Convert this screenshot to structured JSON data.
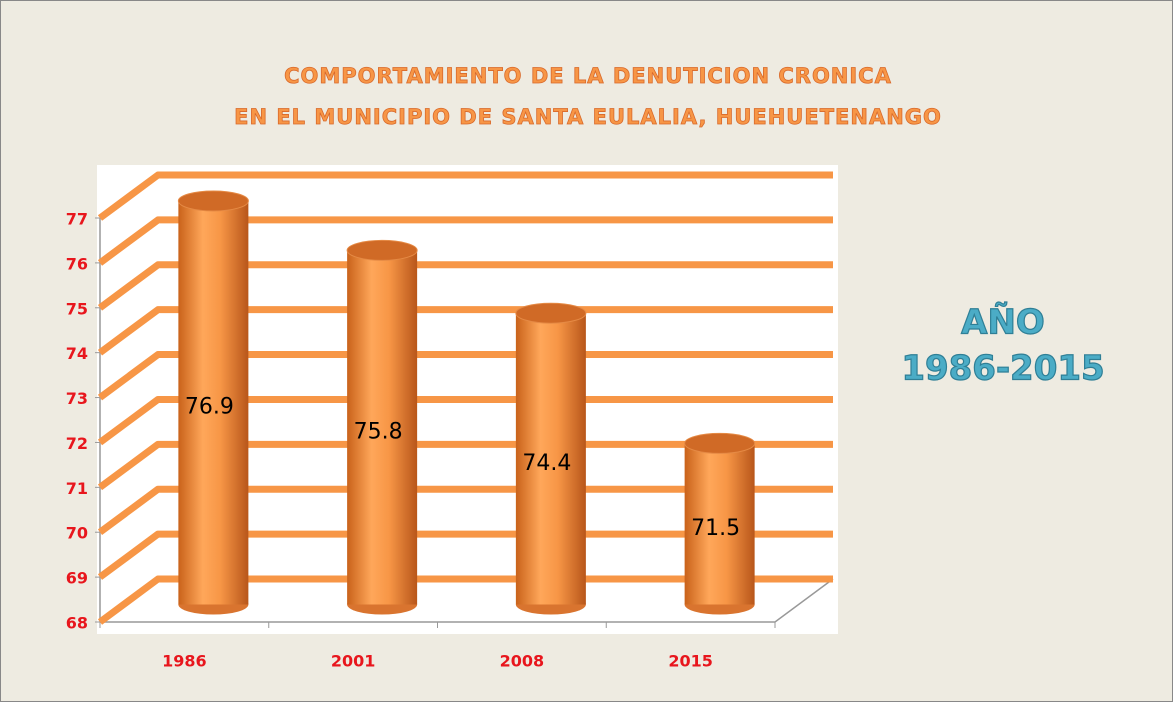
{
  "chart_data": {
    "type": "bar",
    "title": [
      "COMPORTAMIENTO DE LA DENUTICION CRONICA",
      "EN EL MUNICIPIO DE SANTA EULALIA, HUEHUETENANGO"
    ],
    "annotations": [
      "AÑO",
      "1986-2015"
    ],
    "categories": [
      "1986",
      "2001",
      "2008",
      "2015"
    ],
    "values": [
      76.9,
      75.8,
      74.4,
      71.5
    ],
    "color": "#f79646",
    "grid_color": "#f79646",
    "ylim": [
      68,
      77
    ],
    "yticks": [
      68,
      69,
      70,
      71,
      72,
      73,
      74,
      75,
      76,
      77
    ],
    "grid": true
  }
}
